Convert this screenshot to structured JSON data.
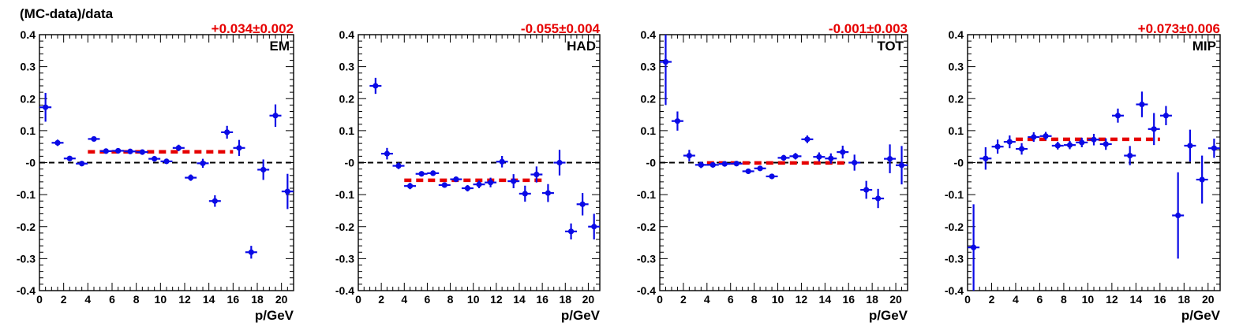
{
  "figure": {
    "ylabel": "(MC-data)/data"
  },
  "colors": {
    "points": "#0a0ae6",
    "fit": "#e60000",
    "fit_label": "#e60000",
    "zero_line": "#000000",
    "axes": "#000000"
  },
  "chart_data": [
    {
      "type": "scatter",
      "panel_label": "EM",
      "fit_label": "+0.034±0.002",
      "fit": {
        "value": 0.034,
        "error": 0.002,
        "x_range": [
          4,
          16
        ]
      },
      "xlabel": "p/GeV",
      "ylabel": "(MC-data)/data",
      "xlim": [
        0,
        21
      ],
      "ylim": [
        -0.4,
        0.4
      ],
      "x_ticks": [
        0,
        2,
        4,
        6,
        8,
        10,
        12,
        14,
        16,
        18,
        20
      ],
      "y_ticks": [
        "-0.4",
        "-0.3",
        "-0.2",
        "-0.1",
        "-0",
        "0.1",
        "0.2",
        "0.3",
        "0.4"
      ],
      "zero_line": true,
      "points": [
        {
          "x": 0.5,
          "y": 0.173,
          "err": 0.045
        },
        {
          "x": 1.5,
          "y": 0.062,
          "err": 0.01
        },
        {
          "x": 2.5,
          "y": 0.013,
          "err": 0.006
        },
        {
          "x": 3.5,
          "y": -0.003,
          "err": 0.004
        },
        {
          "x": 4.5,
          "y": 0.074,
          "err": 0.005
        },
        {
          "x": 5.5,
          "y": 0.036,
          "err": 0.005
        },
        {
          "x": 6.5,
          "y": 0.037,
          "err": 0.005
        },
        {
          "x": 7.5,
          "y": 0.035,
          "err": 0.005
        },
        {
          "x": 8.5,
          "y": 0.033,
          "err": 0.005
        },
        {
          "x": 9.5,
          "y": 0.012,
          "err": 0.006
        },
        {
          "x": 10.5,
          "y": 0.004,
          "err": 0.007
        },
        {
          "x": 11.5,
          "y": 0.046,
          "err": 0.01
        },
        {
          "x": 12.5,
          "y": -0.047,
          "err": 0.01
        },
        {
          "x": 13.5,
          "y": -0.002,
          "err": 0.014
        },
        {
          "x": 14.5,
          "y": -0.12,
          "err": 0.018
        },
        {
          "x": 15.5,
          "y": 0.095,
          "err": 0.02
        },
        {
          "x": 16.5,
          "y": 0.046,
          "err": 0.025
        },
        {
          "x": 17.5,
          "y": -0.28,
          "err": 0.02
        },
        {
          "x": 18.5,
          "y": -0.022,
          "err": 0.032
        },
        {
          "x": 19.5,
          "y": 0.147,
          "err": 0.035
        },
        {
          "x": 20.5,
          "y": -0.09,
          "err": 0.055
        }
      ]
    },
    {
      "type": "scatter",
      "panel_label": "HAD",
      "fit_label": "-0.055±0.004",
      "fit": {
        "value": -0.055,
        "error": 0.004,
        "x_range": [
          4,
          16
        ]
      },
      "xlabel": "p/GeV",
      "ylabel": "",
      "xlim": [
        0,
        21
      ],
      "ylim": [
        -0.4,
        0.4
      ],
      "x_ticks": [
        0,
        2,
        4,
        6,
        8,
        10,
        12,
        14,
        16,
        18,
        20
      ],
      "y_ticks": [
        "-0.4",
        "-0.3",
        "-0.2",
        "-0.1",
        "-0",
        "0.1",
        "0.2",
        "0.3",
        "0.4"
      ],
      "zero_line": true,
      "points": [
        {
          "x": 1.5,
          "y": 0.24,
          "err": 0.025
        },
        {
          "x": 2.5,
          "y": 0.028,
          "err": 0.018
        },
        {
          "x": 3.5,
          "y": -0.01,
          "err": 0.01
        },
        {
          "x": 4.5,
          "y": -0.073,
          "err": 0.01
        },
        {
          "x": 5.5,
          "y": -0.035,
          "err": 0.007
        },
        {
          "x": 6.5,
          "y": -0.033,
          "err": 0.007
        },
        {
          "x": 7.5,
          "y": -0.07,
          "err": 0.008
        },
        {
          "x": 8.5,
          "y": -0.052,
          "err": 0.008
        },
        {
          "x": 9.5,
          "y": -0.08,
          "err": 0.01
        },
        {
          "x": 10.5,
          "y": -0.068,
          "err": 0.012
        },
        {
          "x": 11.5,
          "y": -0.062,
          "err": 0.015
        },
        {
          "x": 12.5,
          "y": 0.003,
          "err": 0.018
        },
        {
          "x": 13.5,
          "y": -0.058,
          "err": 0.022
        },
        {
          "x": 14.5,
          "y": -0.097,
          "err": 0.025
        },
        {
          "x": 15.5,
          "y": -0.037,
          "err": 0.025
        },
        {
          "x": 16.5,
          "y": -0.095,
          "err": 0.028
        },
        {
          "x": 17.5,
          "y": 0.0,
          "err": 0.04
        },
        {
          "x": 18.5,
          "y": -0.215,
          "err": 0.025
        },
        {
          "x": 19.5,
          "y": -0.13,
          "err": 0.035
        },
        {
          "x": 20.5,
          "y": -0.2,
          "err": 0.04
        }
      ]
    },
    {
      "type": "scatter",
      "panel_label": "TOT",
      "fit_label": "-0.001±0.003",
      "fit": {
        "value": -0.001,
        "error": 0.003,
        "x_range": [
          4,
          16
        ]
      },
      "xlabel": "p/GeV",
      "ylabel": "",
      "xlim": [
        0,
        21
      ],
      "ylim": [
        -0.4,
        0.4
      ],
      "x_ticks": [
        0,
        2,
        4,
        6,
        8,
        10,
        12,
        14,
        16,
        18,
        20
      ],
      "y_ticks": [
        "-0.4",
        "-0.3",
        "-0.2",
        "-0.1",
        "-0",
        "0.1",
        "0.2",
        "0.3",
        "0.4"
      ],
      "zero_line": true,
      "points": [
        {
          "x": 0.5,
          "y": 0.315,
          "err": 0.135
        },
        {
          "x": 1.5,
          "y": 0.13,
          "err": 0.03
        },
        {
          "x": 2.5,
          "y": 0.022,
          "err": 0.018
        },
        {
          "x": 3.5,
          "y": -0.007,
          "err": 0.01
        },
        {
          "x": 4.5,
          "y": -0.007,
          "err": 0.008
        },
        {
          "x": 5.5,
          "y": -0.004,
          "err": 0.007
        },
        {
          "x": 6.5,
          "y": -0.003,
          "err": 0.007
        },
        {
          "x": 7.5,
          "y": -0.027,
          "err": 0.007
        },
        {
          "x": 8.5,
          "y": -0.018,
          "err": 0.008
        },
        {
          "x": 9.5,
          "y": -0.043,
          "err": 0.008
        },
        {
          "x": 10.5,
          "y": 0.015,
          "err": 0.009
        },
        {
          "x": 11.5,
          "y": 0.02,
          "err": 0.01
        },
        {
          "x": 12.5,
          "y": 0.073,
          "err": 0.012
        },
        {
          "x": 13.5,
          "y": 0.018,
          "err": 0.014
        },
        {
          "x": 14.5,
          "y": 0.013,
          "err": 0.016
        },
        {
          "x": 15.5,
          "y": 0.033,
          "err": 0.02
        },
        {
          "x": 16.5,
          "y": 0.0,
          "err": 0.025
        },
        {
          "x": 17.5,
          "y": -0.085,
          "err": 0.028
        },
        {
          "x": 18.5,
          "y": -0.112,
          "err": 0.03
        },
        {
          "x": 19.5,
          "y": 0.012,
          "err": 0.045
        },
        {
          "x": 20.5,
          "y": -0.008,
          "err": 0.06
        }
      ]
    },
    {
      "type": "scatter",
      "panel_label": "MIP",
      "fit_label": "+0.073±0.006",
      "fit": {
        "value": 0.073,
        "error": 0.006,
        "x_range": [
          4,
          16
        ]
      },
      "xlabel": "p/GeV",
      "ylabel": "",
      "xlim": [
        0,
        21
      ],
      "ylim": [
        -0.4,
        0.4
      ],
      "x_ticks": [
        0,
        2,
        4,
        6,
        8,
        10,
        12,
        14,
        16,
        18,
        20
      ],
      "y_ticks": [
        "-0.4",
        "-0.3",
        "-0.2",
        "-0.1",
        "-0",
        "0.1",
        "0.2",
        "0.3",
        "0.4"
      ],
      "zero_line": true,
      "points": [
        {
          "x": 0.5,
          "y": -0.265,
          "err": 0.135
        },
        {
          "x": 1.5,
          "y": 0.013,
          "err": 0.035
        },
        {
          "x": 2.5,
          "y": 0.05,
          "err": 0.022
        },
        {
          "x": 3.5,
          "y": 0.065,
          "err": 0.02
        },
        {
          "x": 4.5,
          "y": 0.043,
          "err": 0.018
        },
        {
          "x": 5.5,
          "y": 0.08,
          "err": 0.015
        },
        {
          "x": 6.5,
          "y": 0.083,
          "err": 0.013
        },
        {
          "x": 7.5,
          "y": 0.053,
          "err": 0.012
        },
        {
          "x": 8.5,
          "y": 0.055,
          "err": 0.013
        },
        {
          "x": 9.5,
          "y": 0.063,
          "err": 0.015
        },
        {
          "x": 10.5,
          "y": 0.072,
          "err": 0.018
        },
        {
          "x": 11.5,
          "y": 0.058,
          "err": 0.018
        },
        {
          "x": 12.5,
          "y": 0.147,
          "err": 0.022
        },
        {
          "x": 13.5,
          "y": 0.022,
          "err": 0.03
        },
        {
          "x": 14.5,
          "y": 0.182,
          "err": 0.04
        },
        {
          "x": 15.5,
          "y": 0.105,
          "err": 0.05
        },
        {
          "x": 16.5,
          "y": 0.147,
          "err": 0.03
        },
        {
          "x": 17.5,
          "y": -0.165,
          "err": 0.135
        },
        {
          "x": 18.5,
          "y": 0.053,
          "err": 0.05
        },
        {
          "x": 19.5,
          "y": -0.053,
          "err": 0.075
        },
        {
          "x": 20.5,
          "y": 0.045,
          "err": 0.03
        }
      ]
    }
  ]
}
